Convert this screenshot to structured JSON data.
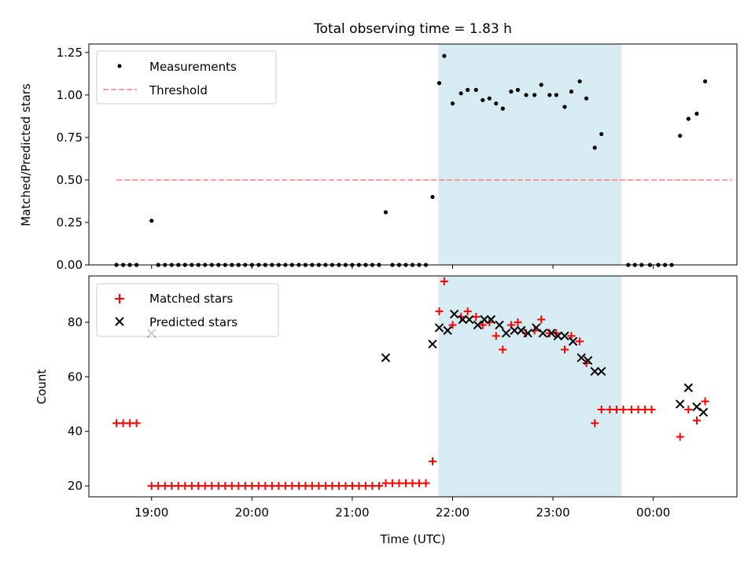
{
  "chart_data": {
    "type": "scatter",
    "title": "Total observing time = 1.83 h",
    "xlabel": "Time (UTC)",
    "x_unit": "minutes since 18:00 UTC",
    "x_ticks": [
      {
        "value": 60,
        "label": "19:00"
      },
      {
        "value": 120,
        "label": "20:00"
      },
      {
        "value": 180,
        "label": "21:00"
      },
      {
        "value": 240,
        "label": "22:00"
      },
      {
        "value": 300,
        "label": "23:00"
      },
      {
        "value": 360,
        "label": "00:00"
      }
    ],
    "xlim": [
      22.5,
      410
    ],
    "observing_window": {
      "start": 231.5,
      "end": 341,
      "color": "#add8e6"
    },
    "panels": [
      {
        "ylabel": "Matched/Predicted stars",
        "ylim": [
          0,
          1.3
        ],
        "y_ticks": [
          0,
          0.25,
          0.5,
          0.75,
          1.0,
          1.25
        ],
        "y_tick_labels": [
          "0.00",
          "0.25",
          "0.50",
          "0.75",
          "1.00",
          "1.25"
        ],
        "legend": {
          "position": "upper left",
          "entries": [
            {
              "label": "Measurements",
              "marker": "dot",
              "color": "#000000"
            },
            {
              "label": "Threshold",
              "marker": "dashed-line",
              "color": "#ff7f7f"
            }
          ]
        },
        "threshold": {
          "value": 0.5,
          "x": [
            39,
            407
          ]
        },
        "series": [
          {
            "name": "Measurements",
            "marker": "dot",
            "color": "#000000",
            "points": [
              [
                39,
                0
              ],
              [
                43,
                0
              ],
              [
                47,
                0
              ],
              [
                51,
                0
              ],
              [
                60,
                0.26
              ],
              [
                64,
                0
              ],
              [
                68,
                0
              ],
              [
                72,
                0
              ],
              [
                76,
                0
              ],
              [
                80,
                0
              ],
              [
                84,
                0
              ],
              [
                88,
                0
              ],
              [
                92,
                0
              ],
              [
                96,
                0
              ],
              [
                100,
                0
              ],
              [
                104,
                0
              ],
              [
                108,
                0
              ],
              [
                112,
                0
              ],
              [
                116,
                0
              ],
              [
                120,
                0
              ],
              [
                124,
                0
              ],
              [
                128,
                0
              ],
              [
                132,
                0
              ],
              [
                136,
                0
              ],
              [
                140,
                0
              ],
              [
                144,
                0
              ],
              [
                148,
                0
              ],
              [
                152,
                0
              ],
              [
                156,
                0
              ],
              [
                160,
                0
              ],
              [
                164,
                0
              ],
              [
                168,
                0
              ],
              [
                172,
                0
              ],
              [
                176,
                0
              ],
              [
                180,
                0
              ],
              [
                184,
                0
              ],
              [
                188,
                0
              ],
              [
                192,
                0
              ],
              [
                196,
                0
              ],
              [
                200,
                0.31
              ],
              [
                204,
                0
              ],
              [
                208,
                0
              ],
              [
                212,
                0
              ],
              [
                216,
                0
              ],
              [
                220,
                0
              ],
              [
                224,
                0
              ],
              [
                228,
                0.4
              ],
              [
                232,
                1.07
              ],
              [
                235,
                1.23
              ],
              [
                240,
                0.95
              ],
              [
                245,
                1.01
              ],
              [
                249,
                1.03
              ],
              [
                254,
                1.03
              ],
              [
                258,
                0.97
              ],
              [
                262,
                0.98
              ],
              [
                266,
                0.95
              ],
              [
                270,
                0.92
              ],
              [
                275,
                1.02
              ],
              [
                279,
                1.03
              ],
              [
                284,
                1.0
              ],
              [
                289,
                1.0
              ],
              [
                293,
                1.06
              ],
              [
                298,
                1.0
              ],
              [
                302,
                1.0
              ],
              [
                307,
                0.93
              ],
              [
                311,
                1.02
              ],
              [
                316,
                1.08
              ],
              [
                320,
                0.98
              ],
              [
                325,
                0.69
              ],
              [
                329,
                0.77
              ],
              [
                345,
                0
              ],
              [
                349,
                0
              ],
              [
                353,
                0
              ],
              [
                358,
                0
              ],
              [
                363,
                0
              ],
              [
                367,
                0
              ],
              [
                371,
                0
              ],
              [
                376,
                0.76
              ],
              [
                381,
                0.86
              ],
              [
                386,
                0.89
              ],
              [
                391,
                1.08
              ]
            ]
          }
        ]
      },
      {
        "ylabel": "Count",
        "ylim": [
          16,
          97
        ],
        "y_ticks": [
          20,
          40,
          60,
          80
        ],
        "y_tick_labels": [
          "20",
          "40",
          "60",
          "80"
        ],
        "legend": {
          "position": "upper left",
          "entries": [
            {
              "label": "Matched stars",
              "marker": "plus",
              "color": "#ff0000"
            },
            {
              "label": "Predicted stars",
              "marker": "x",
              "color": "#000000"
            }
          ]
        },
        "series": [
          {
            "name": "Matched stars",
            "marker": "plus",
            "color": "#ff0000",
            "points": [
              [
                39,
                43
              ],
              [
                43,
                43
              ],
              [
                47,
                43
              ],
              [
                51,
                43
              ],
              [
                60,
                20
              ],
              [
                64,
                20
              ],
              [
                68,
                20
              ],
              [
                72,
                20
              ],
              [
                76,
                20
              ],
              [
                80,
                20
              ],
              [
                84,
                20
              ],
              [
                88,
                20
              ],
              [
                92,
                20
              ],
              [
                96,
                20
              ],
              [
                100,
                20
              ],
              [
                104,
                20
              ],
              [
                108,
                20
              ],
              [
                112,
                20
              ],
              [
                116,
                20
              ],
              [
                120,
                20
              ],
              [
                124,
                20
              ],
              [
                128,
                20
              ],
              [
                132,
                20
              ],
              [
                136,
                20
              ],
              [
                140,
                20
              ],
              [
                144,
                20
              ],
              [
                148,
                20
              ],
              [
                152,
                20
              ],
              [
                156,
                20
              ],
              [
                160,
                20
              ],
              [
                164,
                20
              ],
              [
                168,
                20
              ],
              [
                172,
                20
              ],
              [
                176,
                20
              ],
              [
                180,
                20
              ],
              [
                184,
                20
              ],
              [
                188,
                20
              ],
              [
                192,
                20
              ],
              [
                196,
                20
              ],
              [
                200,
                21
              ],
              [
                204,
                21
              ],
              [
                208,
                21
              ],
              [
                212,
                21
              ],
              [
                216,
                21
              ],
              [
                220,
                21
              ],
              [
                224,
                21
              ],
              [
                228,
                29
              ],
              [
                232,
                84
              ],
              [
                235,
                95
              ],
              [
                240,
                79
              ],
              [
                245,
                82
              ],
              [
                249,
                84
              ],
              [
                254,
                82
              ],
              [
                258,
                79
              ],
              [
                262,
                80
              ],
              [
                266,
                75
              ],
              [
                270,
                70
              ],
              [
                275,
                79
              ],
              [
                279,
                80
              ],
              [
                284,
                76
              ],
              [
                289,
                77
              ],
              [
                293,
                81
              ],
              [
                298,
                76
              ],
              [
                302,
                76
              ],
              [
                307,
                70
              ],
              [
                311,
                75
              ],
              [
                316,
                73
              ],
              [
                320,
                65
              ],
              [
                325,
                43
              ],
              [
                329,
                48
              ],
              [
                334,
                48
              ],
              [
                338,
                48
              ],
              [
                342,
                48
              ],
              [
                347,
                48
              ],
              [
                351,
                48
              ],
              [
                355,
                48
              ],
              [
                359,
                48
              ],
              [
                376,
                38
              ],
              [
                381,
                48
              ],
              [
                386,
                44
              ],
              [
                391,
                51
              ]
            ]
          },
          {
            "name": "Predicted stars",
            "marker": "x",
            "color": "#000000",
            "points": [
              [
                60,
                76
              ],
              [
                200,
                67
              ],
              [
                228,
                72
              ],
              [
                232,
                78
              ],
              [
                237,
                77
              ],
              [
                241,
                83
              ],
              [
                246,
                81
              ],
              [
                250,
                81
              ],
              [
                255,
                79
              ],
              [
                259,
                81
              ],
              [
                263,
                81
              ],
              [
                268,
                79
              ],
              [
                272,
                76
              ],
              [
                277,
                77
              ],
              [
                281,
                77
              ],
              [
                285,
                76
              ],
              [
                290,
                78
              ],
              [
                294,
                76
              ],
              [
                299,
                76
              ],
              [
                303,
                75
              ],
              [
                307,
                75
              ],
              [
                312,
                73
              ],
              [
                317,
                67
              ],
              [
                321,
                66
              ],
              [
                325,
                62
              ],
              [
                329,
                62
              ],
              [
                376,
                50
              ],
              [
                381,
                56
              ],
              [
                386,
                49
              ],
              [
                390,
                47
              ]
            ]
          }
        ]
      }
    ]
  }
}
